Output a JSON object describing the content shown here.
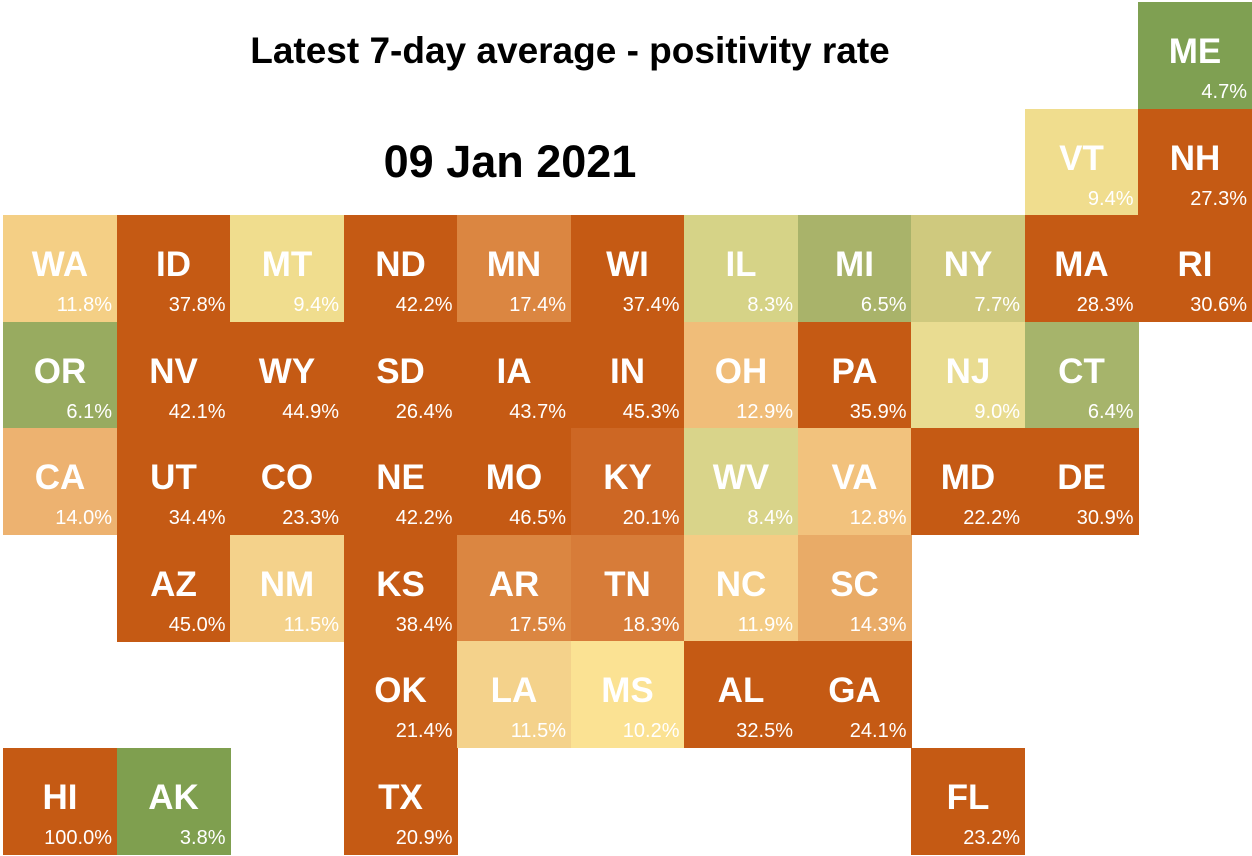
{
  "title": "Latest 7-day average - positivity rate",
  "subtitle": "09 Jan 2021",
  "chart_data": {
    "type": "heatmap",
    "title": "Latest 7-day average - positivity rate",
    "subtitle": "09 Jan 2021",
    "unit": "%",
    "cells": [
      {
        "abbr": "ME",
        "value": 4.7,
        "label": "4.7%",
        "col": 10,
        "row": 0,
        "color": "#7fa052"
      },
      {
        "abbr": "VT",
        "value": 9.4,
        "label": "9.4%",
        "col": 9,
        "row": 1,
        "color": "#f0dd8e"
      },
      {
        "abbr": "NH",
        "value": 27.3,
        "label": "27.3%",
        "col": 10,
        "row": 1,
        "color": "#c55a14"
      },
      {
        "abbr": "WA",
        "value": 11.8,
        "label": "11.8%",
        "col": 0,
        "row": 2,
        "color": "#f4cf85"
      },
      {
        "abbr": "ID",
        "value": 37.8,
        "label": "37.8%",
        "col": 1,
        "row": 2,
        "color": "#c55a14"
      },
      {
        "abbr": "MT",
        "value": 9.4,
        "label": "9.4%",
        "col": 2,
        "row": 2,
        "color": "#f0dd8e"
      },
      {
        "abbr": "ND",
        "value": 42.2,
        "label": "42.2%",
        "col": 3,
        "row": 2,
        "color": "#c55a14"
      },
      {
        "abbr": "MN",
        "value": 17.4,
        "label": "17.4%",
        "col": 4,
        "row": 2,
        "color": "#db8641"
      },
      {
        "abbr": "WI",
        "value": 37.4,
        "label": "37.4%",
        "col": 5,
        "row": 2,
        "color": "#c55a14"
      },
      {
        "abbr": "IL",
        "value": 8.3,
        "label": "8.3%",
        "col": 6,
        "row": 2,
        "color": "#d6d387"
      },
      {
        "abbr": "MI",
        "value": 6.5,
        "label": "6.5%",
        "col": 7,
        "row": 2,
        "color": "#a9b36a"
      },
      {
        "abbr": "NY",
        "value": 7.7,
        "label": "7.7%",
        "col": 8,
        "row": 2,
        "color": "#cfc97e"
      },
      {
        "abbr": "MA",
        "value": 28.3,
        "label": "28.3%",
        "col": 9,
        "row": 2,
        "color": "#c55a14"
      },
      {
        "abbr": "RI",
        "value": 30.6,
        "label": "30.6%",
        "col": 10,
        "row": 2,
        "color": "#c55a14"
      },
      {
        "abbr": "OR",
        "value": 6.1,
        "label": "6.1%",
        "col": 0,
        "row": 3,
        "color": "#98ab60"
      },
      {
        "abbr": "NV",
        "value": 42.1,
        "label": "42.1%",
        "col": 1,
        "row": 3,
        "color": "#c55a14"
      },
      {
        "abbr": "WY",
        "value": 44.9,
        "label": "44.9%",
        "col": 2,
        "row": 3,
        "color": "#c55a14"
      },
      {
        "abbr": "SD",
        "value": 26.4,
        "label": "26.4%",
        "col": 3,
        "row": 3,
        "color": "#c55a14"
      },
      {
        "abbr": "IA",
        "value": 43.7,
        "label": "43.7%",
        "col": 4,
        "row": 3,
        "color": "#c55a14"
      },
      {
        "abbr": "IN",
        "value": 45.3,
        "label": "45.3%",
        "col": 5,
        "row": 3,
        "color": "#c55a14"
      },
      {
        "abbr": "OH",
        "value": 12.9,
        "label": "12.9%",
        "col": 6,
        "row": 3,
        "color": "#f0bd79"
      },
      {
        "abbr": "PA",
        "value": 35.9,
        "label": "35.9%",
        "col": 7,
        "row": 3,
        "color": "#c55a14"
      },
      {
        "abbr": "NJ",
        "value": 9.0,
        "label": "9.0%",
        "col": 8,
        "row": 3,
        "color": "#e9dc91"
      },
      {
        "abbr": "CT",
        "value": 6.4,
        "label": "6.4%",
        "col": 9,
        "row": 3,
        "color": "#a6b46b"
      },
      {
        "abbr": "CA",
        "value": 14.0,
        "label": "14.0%",
        "col": 0,
        "row": 4,
        "color": "#edb270"
      },
      {
        "abbr": "UT",
        "value": 34.4,
        "label": "34.4%",
        "col": 1,
        "row": 4,
        "color": "#c55a14"
      },
      {
        "abbr": "CO",
        "value": 23.3,
        "label": "23.3%",
        "col": 2,
        "row": 4,
        "color": "#c55a14"
      },
      {
        "abbr": "NE",
        "value": 42.2,
        "label": "42.2%",
        "col": 3,
        "row": 4,
        "color": "#c55a14"
      },
      {
        "abbr": "MO",
        "value": 46.5,
        "label": "46.5%",
        "col": 4,
        "row": 4,
        "color": "#c55a14"
      },
      {
        "abbr": "KY",
        "value": 20.1,
        "label": "20.1%",
        "col": 5,
        "row": 4,
        "color": "#cd6724"
      },
      {
        "abbr": "WV",
        "value": 8.4,
        "label": "8.4%",
        "col": 6,
        "row": 4,
        "color": "#d9d48a"
      },
      {
        "abbr": "VA",
        "value": 12.8,
        "label": "12.8%",
        "col": 7,
        "row": 4,
        "color": "#f2c27d"
      },
      {
        "abbr": "MD",
        "value": 22.2,
        "label": "22.2%",
        "col": 8,
        "row": 4,
        "color": "#c55a14"
      },
      {
        "abbr": "DE",
        "value": 30.9,
        "label": "30.9%",
        "col": 9,
        "row": 4,
        "color": "#c55a14"
      },
      {
        "abbr": "AZ",
        "value": 45.0,
        "label": "45.0%",
        "col": 1,
        "row": 5,
        "color": "#c55a14"
      },
      {
        "abbr": "NM",
        "value": 11.5,
        "label": "11.5%",
        "col": 2,
        "row": 5,
        "color": "#f4d28b"
      },
      {
        "abbr": "KS",
        "value": 38.4,
        "label": "38.4%",
        "col": 3,
        "row": 5,
        "color": "#c55a14"
      },
      {
        "abbr": "AR",
        "value": 17.5,
        "label": "17.5%",
        "col": 4,
        "row": 5,
        "color": "#db8641"
      },
      {
        "abbr": "TN",
        "value": 18.3,
        "label": "18.3%",
        "col": 5,
        "row": 5,
        "color": "#d77c39"
      },
      {
        "abbr": "NC",
        "value": 11.9,
        "label": "11.9%",
        "col": 6,
        "row": 5,
        "color": "#f4cc85"
      },
      {
        "abbr": "SC",
        "value": 14.3,
        "label": "14.3%",
        "col": 7,
        "row": 5,
        "color": "#e9ab67"
      },
      {
        "abbr": "OK",
        "value": 21.4,
        "label": "21.4%",
        "col": 3,
        "row": 6,
        "color": "#c55a14"
      },
      {
        "abbr": "LA",
        "value": 11.5,
        "label": "11.5%",
        "col": 4,
        "row": 6,
        "color": "#f4d28b"
      },
      {
        "abbr": "MS",
        "value": 10.2,
        "label": "10.2%",
        "col": 5,
        "row": 6,
        "color": "#fbe293"
      },
      {
        "abbr": "AL",
        "value": 32.5,
        "label": "32.5%",
        "col": 6,
        "row": 6,
        "color": "#c55a14"
      },
      {
        "abbr": "GA",
        "value": 24.1,
        "label": "24.1%",
        "col": 7,
        "row": 6,
        "color": "#c55a14"
      },
      {
        "abbr": "HI",
        "value": 100.0,
        "label": "100.0%",
        "col": 0,
        "row": 7,
        "color": "#c55a14"
      },
      {
        "abbr": "AK",
        "value": 3.8,
        "label": "3.8%",
        "col": 1,
        "row": 7,
        "color": "#7f9f4f"
      },
      {
        "abbr": "TX",
        "value": 20.9,
        "label": "20.9%",
        "col": 3,
        "row": 7,
        "color": "#c55a14"
      },
      {
        "abbr": "FL",
        "value": 23.2,
        "label": "23.2%",
        "col": 8,
        "row": 7,
        "color": "#c55a14"
      }
    ]
  }
}
